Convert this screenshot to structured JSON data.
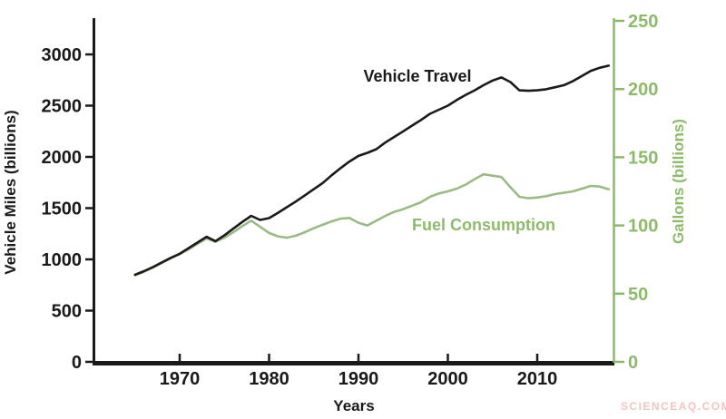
{
  "chart_data": {
    "type": "line",
    "title": "",
    "xlabel": "Years",
    "grid": false,
    "legend_position": "inline-annotations",
    "x_ticks": [
      1970,
      1980,
      1990,
      2000,
      2010
    ],
    "x_range": [
      1964.5,
      2018.8
    ],
    "axes": {
      "left": {
        "label": "Vehicle Miles (billions)",
        "range": [
          0,
          3000
        ],
        "ticks": [
          0,
          500,
          1000,
          1500,
          2000,
          2500,
          3000
        ],
        "color": "#1a1a1a"
      },
      "right": {
        "label": "Gallons (billions)",
        "range": [
          0,
          250
        ],
        "ticks": [
          0,
          50,
          100,
          150,
          200,
          250
        ],
        "color": "#8bbb69"
      }
    },
    "x": [
      1965,
      1966,
      1967,
      1968,
      1969,
      1970,
      1971,
      1972,
      1973,
      1974,
      1975,
      1976,
      1977,
      1978,
      1979,
      1980,
      1981,
      1982,
      1983,
      1984,
      1985,
      1986,
      1987,
      1988,
      1989,
      1990,
      1991,
      1992,
      1993,
      1994,
      1995,
      1996,
      1997,
      1998,
      1999,
      2000,
      2001,
      2002,
      2003,
      2004,
      2005,
      2006,
      2007,
      2008,
      2009,
      2010,
      2011,
      2012,
      2013,
      2014,
      2015,
      2016,
      2017,
      2018
    ],
    "series": [
      {
        "name": "Vehicle Travel",
        "axis": "left",
        "unit": "billion vehicle miles",
        "color": "#1a1a1a",
        "values": [
          850,
          885,
          925,
          970,
          1015,
          1055,
          1110,
          1165,
          1220,
          1178,
          1235,
          1300,
          1365,
          1425,
          1385,
          1403,
          1455,
          1510,
          1565,
          1625,
          1685,
          1745,
          1820,
          1890,
          1955,
          2010,
          2040,
          2075,
          2140,
          2195,
          2250,
          2305,
          2360,
          2420,
          2460,
          2500,
          2555,
          2605,
          2650,
          2700,
          2745,
          2775,
          2730,
          2650,
          2645,
          2650,
          2660,
          2680,
          2700,
          2740,
          2790,
          2840,
          2870,
          2890
        ]
      },
      {
        "name": "Fuel Consumption",
        "axis": "right",
        "unit": "billion gallons",
        "color": "#9cba85",
        "values": [
          63.5,
          66,
          69,
          72.5,
          76,
          79,
          82.5,
          86.5,
          90.5,
          88,
          91,
          95,
          99.5,
          103.5,
          99,
          94.5,
          92,
          91,
          92.5,
          95,
          98,
          100.5,
          103,
          105,
          105.5,
          102,
          100,
          103.5,
          107,
          110,
          112,
          114.5,
          117,
          121,
          123.5,
          125,
          127,
          130,
          134,
          137.5,
          136.5,
          135.5,
          128,
          121,
          120,
          120.5,
          121.5,
          123,
          124,
          125,
          127,
          129,
          128.5,
          126.5
        ]
      }
    ],
    "annotation_colors": {
      "vehicle_travel": "#1a1a1a",
      "fuel_consumption": "#8cbb6a"
    }
  },
  "watermark": {
    "text": "SCIENCEAQ.COM",
    "color": "#f2c4c0"
  }
}
